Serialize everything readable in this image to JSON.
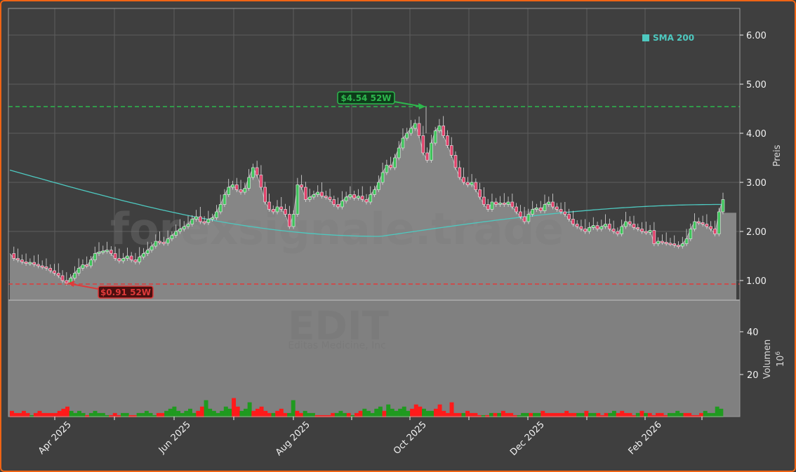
{
  "chart_data": {
    "type": "candlestick",
    "ticker": "EDIT",
    "company": "Editas Medicine, Inc",
    "watermark": "forexsignale.trade",
    "price_axis": {
      "label": "Preis",
      "ticks": [
        "1.00",
        "2.00",
        "3.00",
        "4.00",
        "5.00",
        "6.00"
      ],
      "tick_values": [
        1,
        2,
        3,
        4,
        5,
        6
      ],
      "ylim": [
        0.6,
        6.5
      ]
    },
    "volume_axis": {
      "label": "Volumen",
      "multiplier": "10",
      "exponent": "6",
      "ticks": [
        "20",
        "40"
      ],
      "tick_values": [
        20,
        40
      ]
    },
    "x_axis": {
      "ticks": [
        "Apr 2025",
        "Jun 2025",
        "Aug 2025",
        "Oct 2025",
        "Dec 2025",
        "Feb 2026"
      ]
    },
    "legend": [
      {
        "name": "SMA 200",
        "color": "#4ec9c0"
      }
    ],
    "annotations": {
      "high_52w": {
        "label": "$4.54 52W",
        "value": 4.54,
        "color": "#2db84d"
      },
      "low_52w": {
        "label": "$0.91 52W",
        "value": 0.91,
        "color": "#e03a3a"
      }
    },
    "close_series": [
      1.55,
      1.45,
      1.42,
      1.38,
      1.35,
      1.37,
      1.33,
      1.3,
      1.28,
      1.25,
      1.2,
      1.15,
      1.1,
      1.0,
      0.95,
      1.05,
      1.15,
      1.25,
      1.32,
      1.3,
      1.42,
      1.55,
      1.58,
      1.6,
      1.62,
      1.55,
      1.45,
      1.4,
      1.45,
      1.5,
      1.42,
      1.38,
      1.48,
      1.55,
      1.62,
      1.7,
      1.8,
      1.78,
      1.76,
      1.85,
      1.92,
      2.0,
      2.05,
      2.1,
      2.15,
      2.25,
      2.3,
      2.2,
      2.18,
      2.25,
      2.28,
      2.4,
      2.55,
      2.75,
      2.9,
      2.95,
      2.85,
      2.8,
      2.88,
      3.1,
      3.3,
      3.15,
      2.9,
      2.6,
      2.45,
      2.4,
      2.5,
      2.45,
      2.35,
      2.1,
      2.35,
      2.95,
      2.9,
      2.65,
      2.7,
      2.75,
      2.8,
      2.72,
      2.7,
      2.65,
      2.55,
      2.5,
      2.62,
      2.7,
      2.75,
      2.68,
      2.72,
      2.65,
      2.6,
      2.75,
      2.85,
      3.0,
      3.2,
      3.35,
      3.3,
      3.5,
      3.7,
      3.9,
      4.0,
      4.1,
      4.2,
      3.95,
      3.6,
      3.45,
      3.8,
      4.05,
      4.15,
      3.95,
      3.75,
      3.55,
      3.3,
      3.1,
      3.0,
      2.95,
      3.0,
      2.85,
      2.7,
      2.55,
      2.45,
      2.6,
      2.55,
      2.58,
      2.55,
      2.6,
      2.5,
      2.4,
      2.3,
      2.2,
      2.35,
      2.45,
      2.48,
      2.42,
      2.55,
      2.6,
      2.5,
      2.45,
      2.4,
      2.35,
      2.25,
      2.15,
      2.1,
      2.05,
      2.0,
      2.08,
      2.12,
      2.05,
      2.1,
      2.15,
      2.05,
      2.0,
      1.95,
      2.1,
      2.2,
      2.15,
      2.08,
      2.05,
      2.0,
      1.98,
      2.02,
      1.75,
      1.8,
      1.78,
      1.76,
      1.75,
      1.72,
      1.7,
      1.75,
      1.85,
      2.05,
      2.2,
      2.18,
      2.15,
      2.1,
      2.05,
      1.95,
      2.4,
      2.65
    ],
    "sma200_start": 3.25,
    "sma200_end": 2.55,
    "volume_series": [
      3,
      2,
      2,
      3,
      2,
      1,
      2,
      3,
      2,
      2,
      2,
      2,
      3,
      4,
      5,
      3,
      2,
      3,
      2,
      1,
      2,
      3,
      2,
      2,
      1,
      1,
      2,
      1,
      2,
      2,
      1,
      1,
      2,
      2,
      3,
      2,
      1,
      2,
      2,
      3,
      4,
      5,
      3,
      2,
      3,
      4,
      2,
      3,
      5,
      8,
      4,
      3,
      2,
      3,
      5,
      4,
      9,
      5,
      3,
      4,
      7,
      3,
      4,
      5,
      3,
      2,
      2,
      3,
      4,
      2,
      2,
      8,
      3,
      2,
      3,
      2,
      2,
      1,
      1,
      1,
      1,
      2,
      2,
      3,
      2,
      2,
      1,
      2,
      3,
      4,
      3,
      2,
      4,
      5,
      3,
      6,
      4,
      3,
      4,
      5,
      3,
      4,
      6,
      5,
      4,
      3,
      3,
      4,
      6,
      3,
      2,
      7,
      2,
      2,
      2,
      3,
      2,
      2,
      1,
      1,
      1,
      2,
      2,
      2,
      3,
      2,
      2,
      1,
      1,
      2,
      2,
      2,
      2,
      2,
      3,
      2,
      2,
      2,
      2,
      2,
      3,
      2,
      2,
      2,
      2,
      3,
      2,
      2,
      2,
      1,
      2,
      2,
      3,
      2,
      3,
      2,
      2,
      1,
      2,
      3,
      2,
      2,
      1,
      2,
      2,
      1,
      2,
      2,
      3,
      2,
      2,
      2,
      1,
      1,
      2,
      3,
      2,
      2,
      5,
      4
    ],
    "volume_up_flags": "mixed"
  }
}
